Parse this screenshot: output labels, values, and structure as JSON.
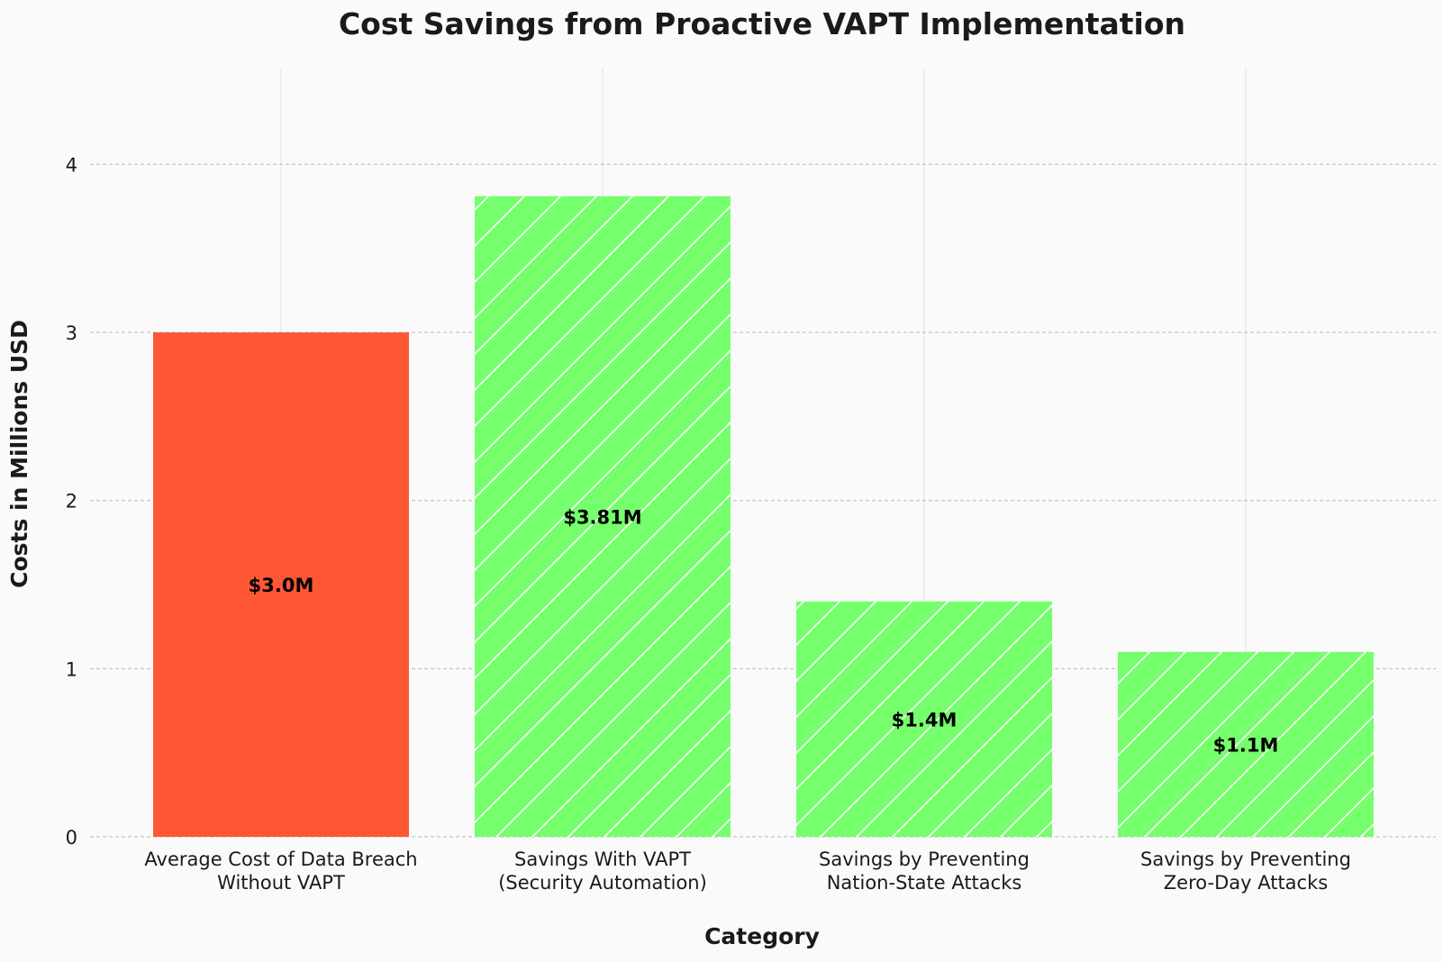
{
  "chart_data": {
    "type": "bar",
    "title": "Cost Savings from Proactive VAPT Implementation",
    "xlabel": "Category",
    "ylabel": "Costs in Millions USD",
    "categories": [
      [
        "Average Cost of Data Breach",
        "Without VAPT"
      ],
      [
        "Savings With VAPT",
        "(Security Automation)"
      ],
      [
        "Savings by Preventing",
        "Nation-State Attacks"
      ],
      [
        "Savings by Preventing",
        "Zero-Day Attacks"
      ]
    ],
    "values": [
      3.0,
      3.81,
      1.4,
      1.1
    ],
    "data_labels": [
      "$3.0M",
      "$3.81M",
      "$1.4M",
      "$1.1M"
    ],
    "bar_colors": [
      "#ff5733",
      "#75ff6d",
      "#75ff6d",
      "#75ff6d"
    ],
    "hatched": [
      false,
      true,
      true,
      true
    ],
    "ylim": [
      0,
      4.57
    ],
    "yticks": [
      0,
      1,
      2,
      3,
      4
    ],
    "grid": true
  }
}
